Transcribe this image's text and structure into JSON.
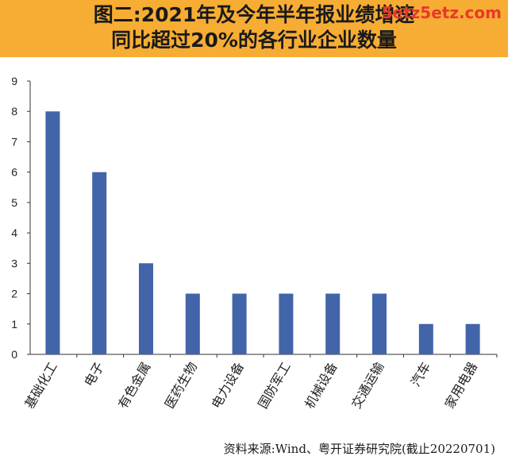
{
  "header": {
    "title_line1": "图二:2021年及今年半年报业绩增速",
    "title_line2": "同比超过20%的各行业企业数量",
    "watermark": "5etz5etz.com"
  },
  "colors": {
    "header_bg": "#f7ad33",
    "bar": "#4264a8",
    "axis": "#333333"
  },
  "chart_data": {
    "type": "bar",
    "categories": [
      "基础化工",
      "电子",
      "有色金属",
      "医药生物",
      "电力设备",
      "国防军工",
      "机械设备",
      "交通运输",
      "汽车",
      "家用电器"
    ],
    "values": [
      8,
      6,
      3,
      2,
      2,
      2,
      2,
      2,
      1,
      1
    ],
    "ylim": [
      0,
      9
    ],
    "yticks": [
      0,
      1,
      2,
      3,
      4,
      5,
      6,
      7,
      8,
      9
    ],
    "grid": false,
    "legend": "none"
  },
  "source": "资料来源:Wind、粤开证券研究院(截止20220701)"
}
